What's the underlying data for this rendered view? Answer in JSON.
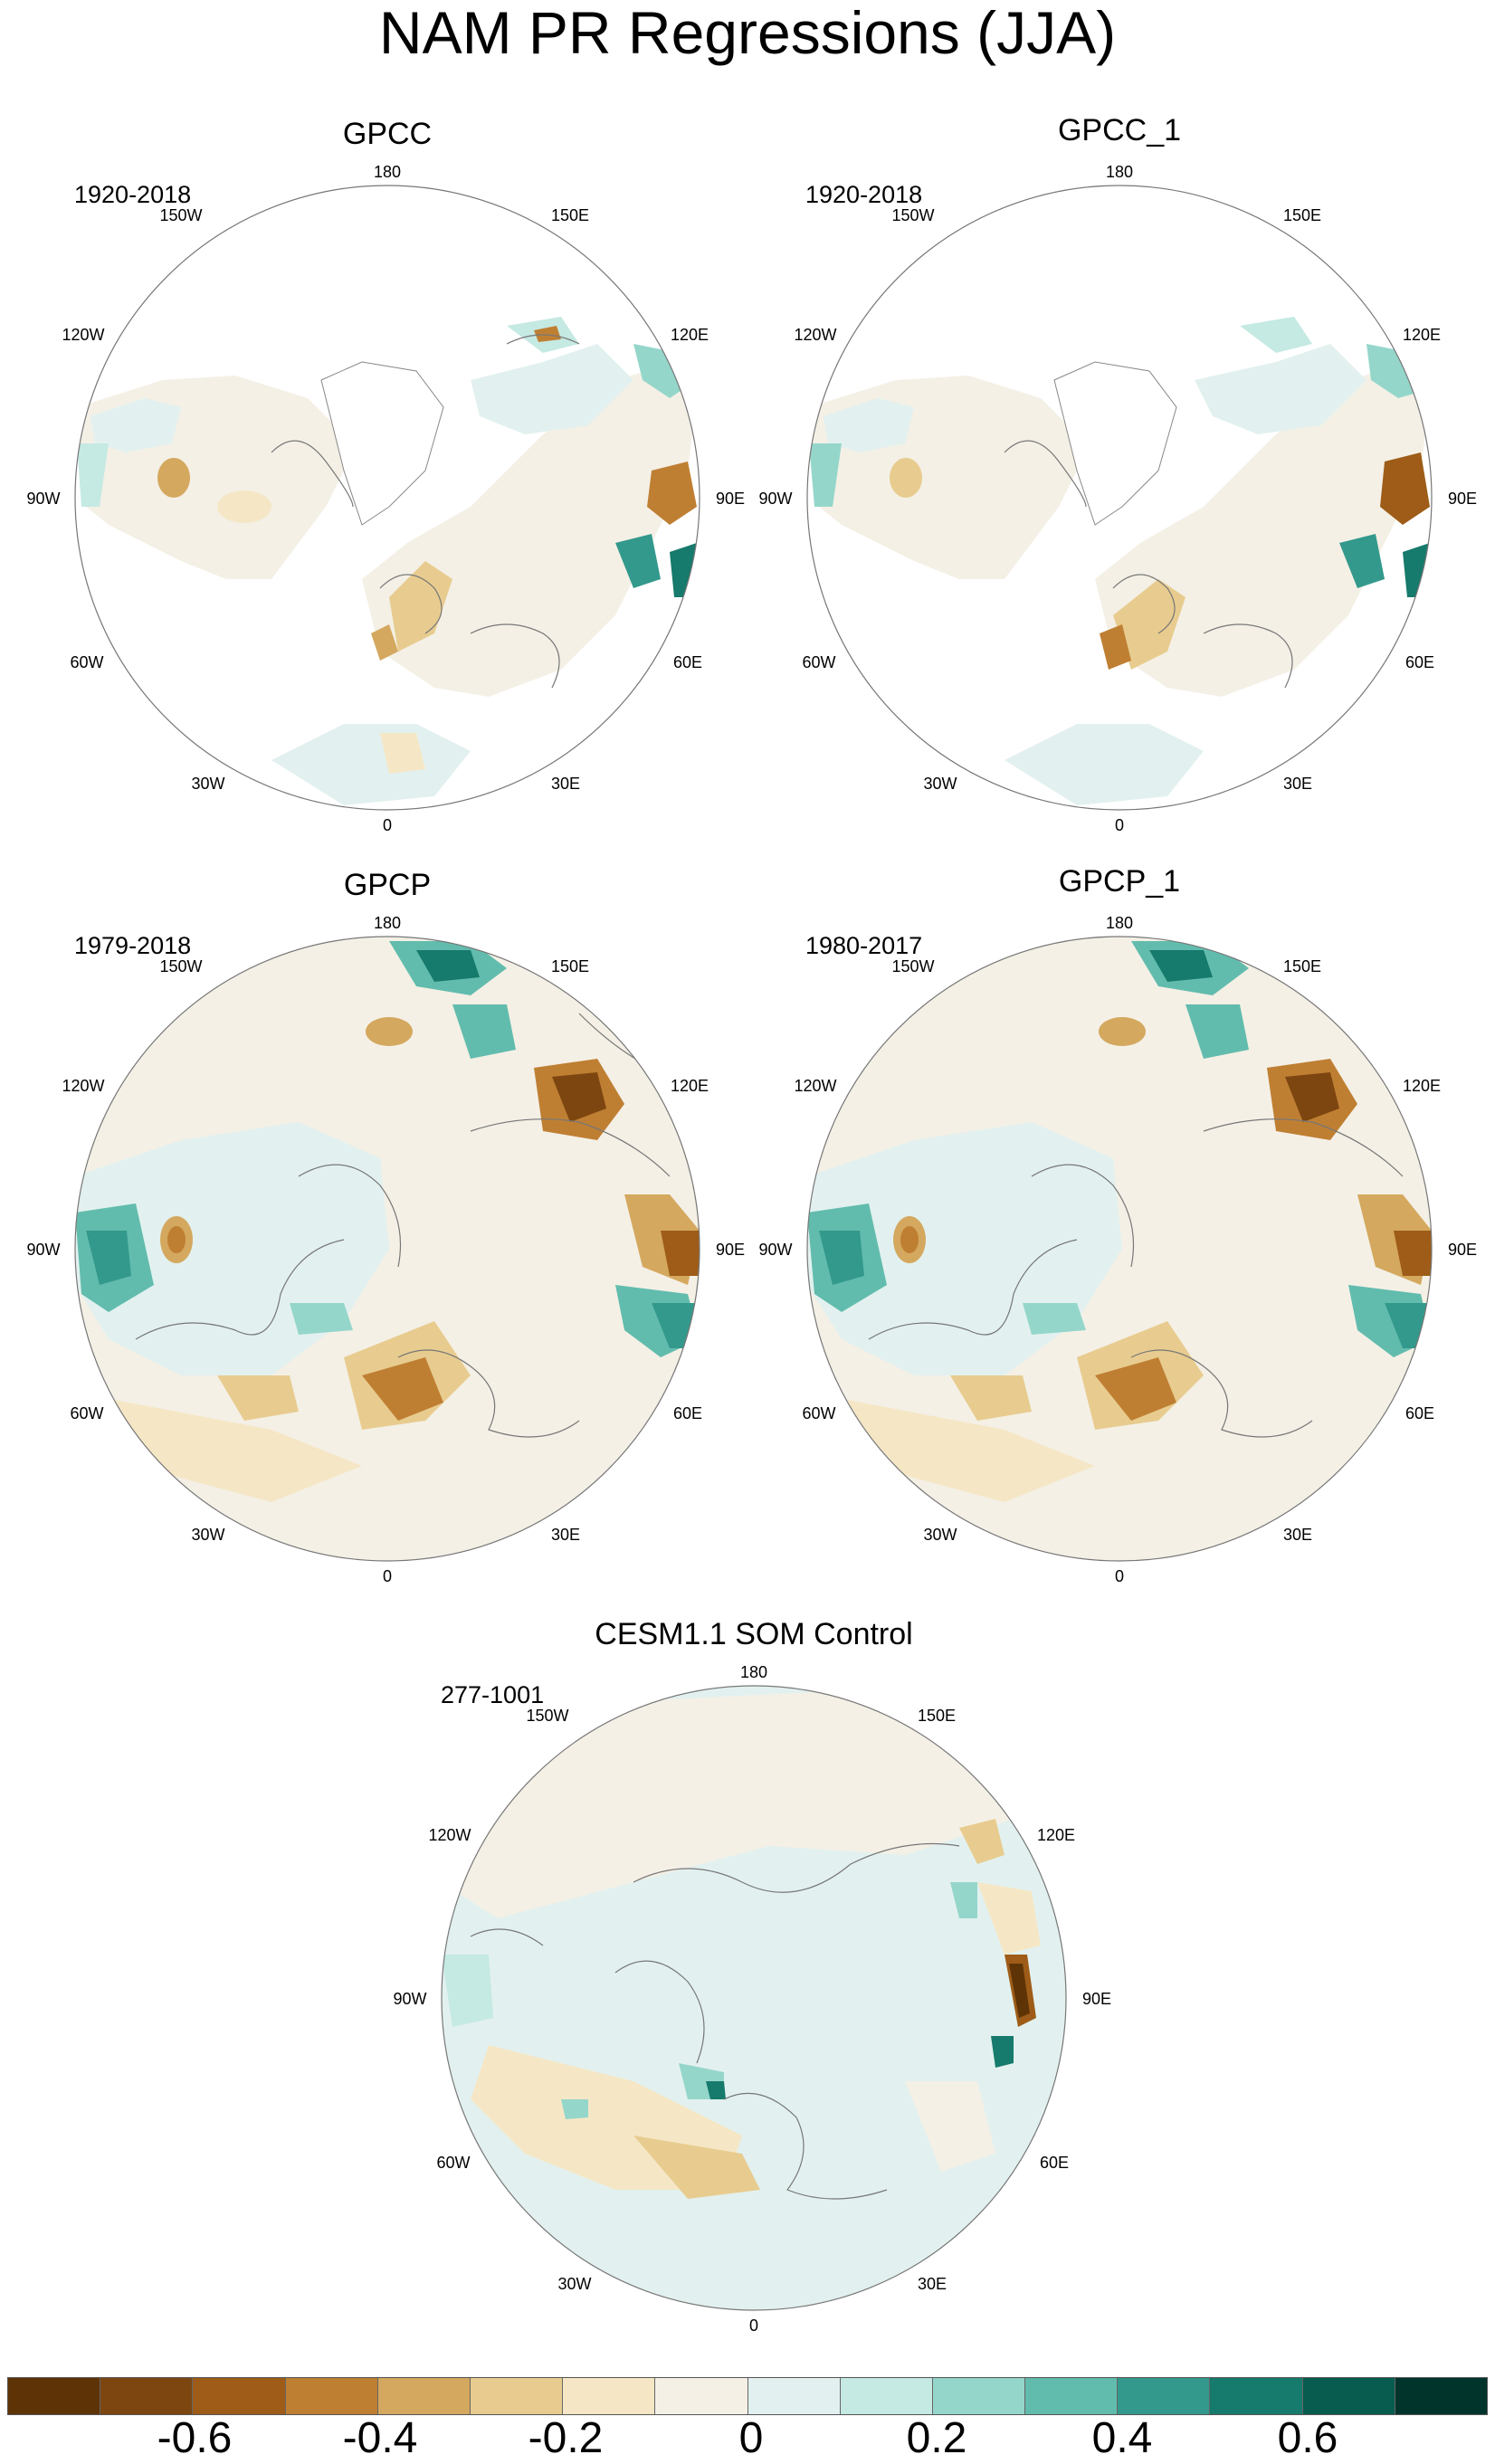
{
  "title": "NAM PR Regressions (JJA)",
  "panels": [
    {
      "id": "gpcc",
      "title": "GPCC",
      "period": "1920-2018"
    },
    {
      "id": "gpcc1",
      "title": "GPCC_1",
      "period": "1920-2018"
    },
    {
      "id": "gpcp",
      "title": "GPCP",
      "period": "1979-2018"
    },
    {
      "id": "gpcp1",
      "title": "GPCP_1",
      "period": "1980-2017"
    },
    {
      "id": "cesm",
      "title": "CESM1.1 SOM Control",
      "period": "277-1001"
    }
  ],
  "lon_labels": {
    "top": "180",
    "bottom": "0",
    "l150": "150W",
    "l120": "120W",
    "l90": "90W",
    "l60": "60W",
    "l30": "30W",
    "r150": "150E",
    "r120": "120E",
    "r90": "90E",
    "r60": "60E",
    "r30": "30E"
  },
  "colorbar": {
    "colors": [
      "#5e3407",
      "#7d4610",
      "#9e5c18",
      "#bf7f33",
      "#d4a85e",
      "#e8cc8f",
      "#f5e7c6",
      "#f4f0e6",
      "#e2f1ef",
      "#c5e9e3",
      "#95d6cb",
      "#62bcad",
      "#33998c",
      "#167a6c",
      "#075c4f",
      "#01352c"
    ],
    "labels": [
      "-0.6",
      "-0.4",
      "-0.2",
      "0",
      "0.2",
      "0.4",
      "0.6"
    ]
  }
}
